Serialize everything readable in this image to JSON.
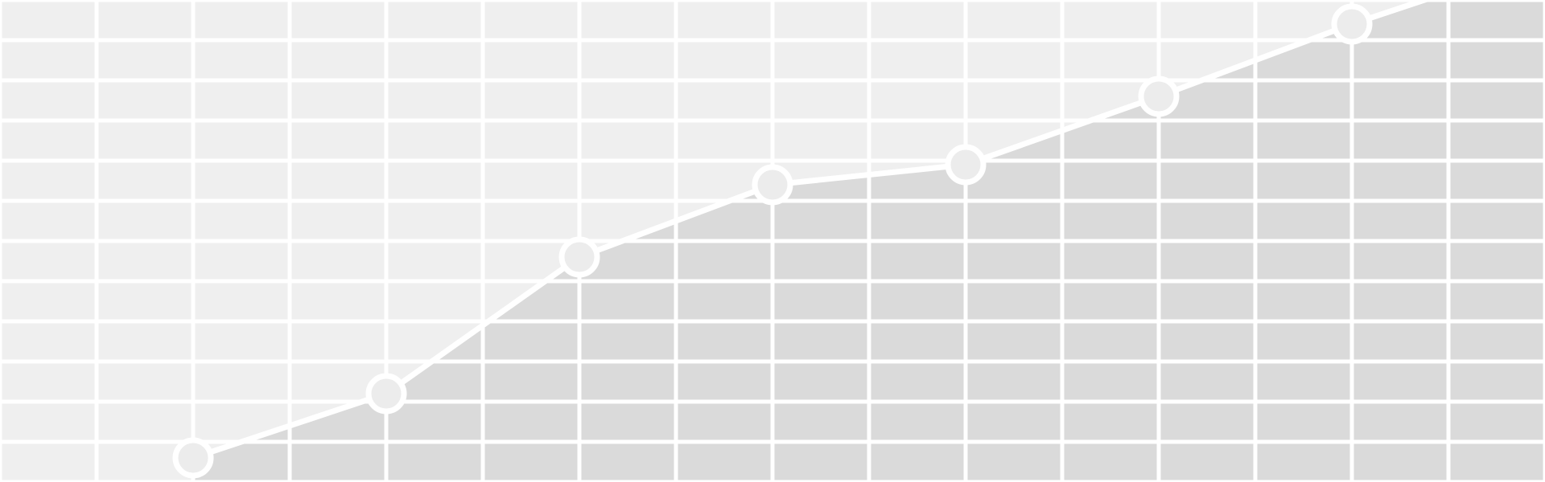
{
  "chart_data": {
    "type": "area",
    "title": "",
    "xlabel": "",
    "ylabel": "",
    "grid": true,
    "legend": "none",
    "xlim": [
      -1,
      15
    ],
    "ylim": [
      -10,
      110
    ],
    "series": [
      {
        "x": [
          1,
          3,
          5,
          7,
          9,
          11,
          13,
          15
        ],
        "values": [
          -4,
          12,
          46,
          64,
          69,
          86,
          104,
          120
        ],
        "markers": true
      }
    ],
    "colors": {
      "background": "#efefef",
      "grid": "#ffffff",
      "area_fill": "#dadada",
      "line": "#ffffff",
      "marker_fill": "#ececec",
      "marker_stroke": "#ffffff"
    }
  }
}
